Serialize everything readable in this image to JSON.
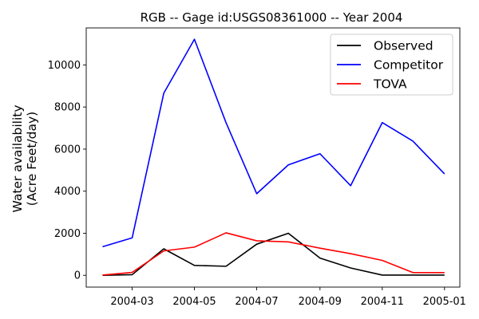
{
  "chart_data": {
    "type": "line",
    "title": "RGB -- Gage id:USGS08361000 -- Year 2004",
    "xlabel": "",
    "ylabel_lines": [
      "Water availability",
      "(Acre Feet/day)"
    ],
    "x": [
      "2004-02-01",
      "2004-03-01",
      "2004-04-01",
      "2004-05-01",
      "2004-06-01",
      "2004-07-01",
      "2004-08-01",
      "2004-09-01",
      "2004-10-01",
      "2004-11-01",
      "2004-12-01",
      "2005-01-01"
    ],
    "x_ticks": [
      "2004-03",
      "2004-05",
      "2004-07",
      "2004-09",
      "2004-11",
      "2005-01"
    ],
    "x_tick_dates": [
      "2004-03-01",
      "2004-05-01",
      "2004-07-01",
      "2004-09-01",
      "2004-11-01",
      "2005-01-01"
    ],
    "xlim": [
      "2004-01-16",
      "2005-01-16"
    ],
    "y_ticks": [
      0,
      2000,
      4000,
      6000,
      8000,
      10000
    ],
    "ylim": [
      -560,
      11760
    ],
    "grid": false,
    "legend": "top-right",
    "series": [
      {
        "name": "Observed",
        "color": "#000000",
        "values": [
          0,
          30,
          1260,
          470,
          430,
          1480,
          2000,
          820,
          350,
          10,
          10,
          10
        ]
      },
      {
        "name": "Competitor",
        "color": "#0000ff",
        "values": [
          1360,
          1780,
          8660,
          11220,
          7250,
          3880,
          5250,
          5780,
          4260,
          7260,
          6380,
          4820
        ]
      },
      {
        "name": "TOVA",
        "color": "#ff0000",
        "values": [
          10,
          140,
          1160,
          1340,
          2020,
          1640,
          1590,
          1290,
          1030,
          710,
          130,
          130
        ]
      }
    ]
  }
}
